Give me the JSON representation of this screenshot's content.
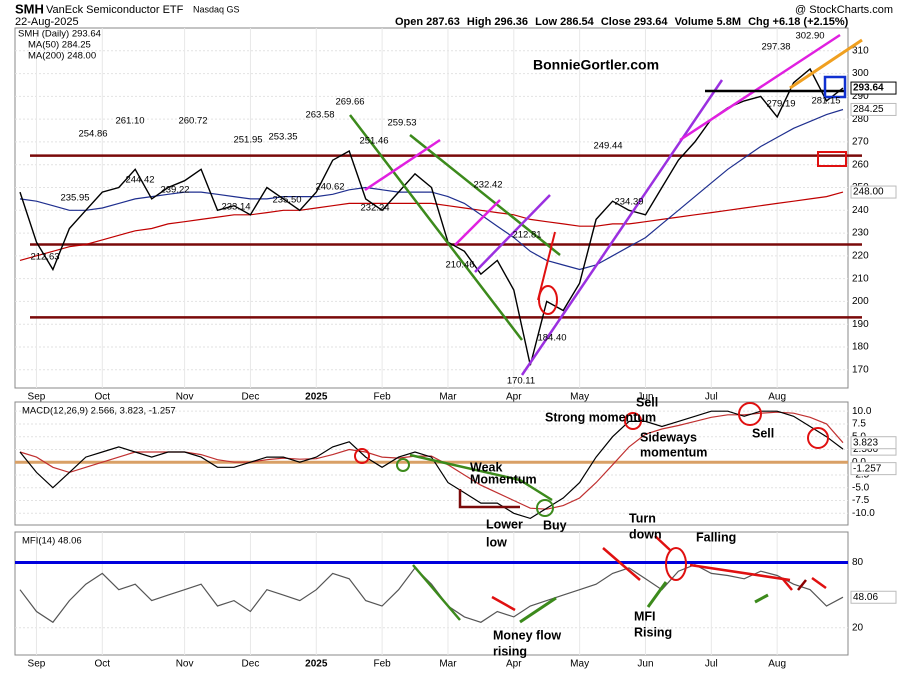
{
  "header": {
    "symbol": "SMH",
    "name": "VanEck Semiconductor ETF",
    "exchange": "Nasdaq GS",
    "date": "22-Aug-2025",
    "source": "@ StockCharts.com",
    "quote": [
      "Open 287.63",
      "High 296.36",
      "Low 286.54",
      "Close 293.64",
      "Volume 5.8M",
      "Chg +6.18 (+2.15%)"
    ]
  },
  "chart_data": [
    {
      "type": "line",
      "categories": [
        null,
        "Sep",
        null,
        null,
        null,
        "Oct",
        null,
        null,
        null,
        null,
        "Nov",
        null,
        null,
        null,
        "Dec",
        null,
        null,
        null,
        "2025",
        null,
        null,
        null,
        "Feb",
        null,
        null,
        null,
        "Mar",
        null,
        null,
        null,
        "Apr",
        null,
        null,
        null,
        "May",
        null,
        null,
        null,
        "Jun",
        null,
        null,
        null,
        "Jul",
        null,
        null,
        null,
        "Aug",
        null,
        null,
        null,
        null
      ],
      "series": [
        {
          "name": "SMH (Daily) 293.64",
          "color": "#000000",
          "values": [
            248,
            226,
            214,
            232,
            240,
            248,
            250,
            258,
            245,
            250,
            253,
            258,
            240,
            242,
            238,
            250,
            245,
            240,
            248,
            262,
            266,
            245,
            240,
            248,
            256,
            250,
            226,
            222,
            212,
            218,
            205,
            172,
            200,
            196,
            208,
            236,
            244,
            240,
            238,
            250,
            262,
            270,
            280,
            285,
            288,
            290,
            281,
            296,
            302,
            288,
            293.64
          ]
        },
        {
          "name": "MA(50) 284.25",
          "color": "#1f2f8f",
          "values": [
            245,
            244,
            242,
            240,
            240,
            241,
            243,
            245,
            246,
            247,
            248,
            248,
            247,
            246,
            245,
            245,
            246,
            246,
            246,
            247,
            249,
            250,
            249,
            248,
            248,
            248,
            246,
            243,
            238,
            233,
            228,
            222,
            218,
            216,
            214,
            216,
            220,
            224,
            228,
            234,
            240,
            246,
            252,
            258,
            263,
            268,
            272,
            276,
            279,
            282,
            284.25
          ]
        },
        {
          "name": "MA(200) 248.00",
          "color": "#c00000",
          "values": [
            218,
            220,
            222,
            224,
            225,
            227,
            229,
            231,
            232,
            234,
            235,
            236,
            237,
            238,
            238,
            239,
            240,
            240,
            241,
            242,
            243,
            243,
            243,
            243,
            243,
            243,
            242,
            241,
            240,
            239,
            238,
            236,
            235,
            234,
            233,
            233,
            234,
            234,
            235,
            236,
            237,
            238,
            239,
            240,
            241,
            242,
            243,
            244,
            245,
            246,
            248
          ]
        }
      ],
      "last_values": [
        293.64,
        284.25,
        {
          "value": 248,
          "label": "248.00"
        }
      ],
      "ylim": [
        162,
        320
      ],
      "yticks": [
        170,
        180,
        190,
        200,
        210,
        220,
        230,
        240,
        250,
        260,
        270,
        280,
        290,
        300,
        310
      ],
      "grid": true,
      "levels": [
        264,
        225,
        193
      ],
      "level_color": "#7a0a0a",
      "price_labels": [
        "254.86",
        "261.10",
        "260.72",
        "244.42",
        "239.22",
        "235.95",
        "251.95",
        "253.35",
        "233.14",
        "235.50",
        "263.58",
        "269.66",
        "251.46",
        "240.62",
        "232.24",
        "259.53",
        "212.63",
        "232.42",
        "210.46",
        "212.81",
        "184.40",
        "170.11",
        "249.44",
        "234.39",
        "297.38",
        "302.90",
        "279.19",
        "281.15"
      ],
      "annotations": [
        {
          "lines": [
            "BonnieGortler.com"
          ],
          "color": "#1a8a1a"
        }
      ]
    },
    {
      "type": "line",
      "title": "MACD(12,26,9) 2.566, 3.823, -1.257",
      "series": [
        {
          "color": "#000000",
          "values": [
            2,
            -2,
            -5,
            -2,
            1,
            2,
            3,
            2,
            1,
            2,
            2,
            1,
            -1,
            -1,
            0,
            1,
            1,
            0,
            1,
            3,
            4,
            1,
            -1,
            1,
            2,
            1,
            -4,
            -6,
            -8,
            -8,
            -10,
            -11,
            -9,
            -7,
            -4,
            1,
            5,
            8,
            8,
            7,
            8,
            9,
            10,
            10,
            9,
            10,
            10,
            9,
            7,
            5,
            2.566
          ]
        },
        {
          "color": "#c03030",
          "values": [
            2,
            1,
            -1,
            -2,
            -1,
            0,
            1,
            2,
            2,
            2,
            2,
            1.5,
            0.5,
            0,
            0,
            0.5,
            0.8,
            0.6,
            0.7,
            1.5,
            2.5,
            2,
            1,
            0.8,
            1.2,
            1.2,
            -0.5,
            -2.5,
            -4.5,
            -6,
            -7.5,
            -9,
            -9.2,
            -8.5,
            -7,
            -4,
            -0.5,
            3,
            5.5,
            6.5,
            7.2,
            8,
            8.8,
            9.3,
            9.3,
            9.6,
            9.8,
            9.6,
            8.8,
            7.5,
            3.823
          ]
        }
      ],
      "last_values": [
        2.566,
        3.823,
        -1.257
      ],
      "ylim": [
        -12.3,
        11.8
      ],
      "yticks": [
        {
          "value": 10,
          "label": "10.0"
        },
        7.5,
        {
          "value": 5,
          "label": "5.0"
        },
        2.5,
        {
          "value": 0,
          "label": "0.0"
        },
        -2.5,
        {
          "value": -5,
          "label": "-5.0"
        },
        -7.5,
        {
          "value": -10,
          "label": "-10.0"
        }
      ],
      "grid": true,
      "annotations": [
        {
          "lines": [
            "Strong momentum"
          ],
          "color": "#000000"
        },
        {
          "lines": [
            "Sell"
          ],
          "color": "#d01010"
        },
        {
          "lines": [
            "Sideways",
            "momentum"
          ],
          "color": "#000000"
        },
        {
          "lines": [
            "Sell"
          ],
          "color": "#d01010"
        },
        {
          "lines": [
            "Weak",
            "Momentum"
          ],
          "color": "#333333"
        },
        {
          "lines": [
            "Lower",
            "low"
          ],
          "color": "#8b0000"
        },
        {
          "lines": [
            "Buy"
          ],
          "color": "#1a8a1a"
        }
      ]
    },
    {
      "type": "line",
      "title": "MFI(14) 48.06",
      "categories": [
        null,
        "Sep",
        null,
        null,
        null,
        "Oct",
        null,
        null,
        null,
        null,
        "Nov",
        null,
        null,
        null,
        "Dec",
        null,
        null,
        null,
        "2025",
        null,
        null,
        null,
        "Feb",
        null,
        null,
        null,
        "Mar",
        null,
        null,
        null,
        "Apr",
        null,
        null,
        null,
        "May",
        null,
        null,
        null,
        "Jun",
        null,
        null,
        null,
        "Jul",
        null,
        null,
        null,
        "Aug",
        null,
        null,
        null,
        null
      ],
      "series": [
        {
          "color": "#555555",
          "values": [
            55,
            35,
            25,
            45,
            60,
            70,
            55,
            60,
            45,
            50,
            55,
            60,
            40,
            45,
            35,
            55,
            50,
            45,
            55,
            70,
            65,
            45,
            40,
            55,
            75,
            60,
            40,
            30,
            25,
            35,
            30,
            40,
            45,
            50,
            55,
            60,
            70,
            75,
            65,
            55,
            72,
            78,
            70,
            68,
            65,
            72,
            68,
            60,
            55,
            40,
            48.06
          ]
        }
      ],
      "last_values": [
        48.06
      ],
      "ylim": [
        -5,
        108
      ],
      "yticks": [
        20,
        80
      ],
      "grid": true,
      "reference": {
        "value": 80,
        "color": "#0000dd"
      },
      "annotations": [
        {
          "lines": [
            "Turn",
            "down"
          ],
          "color": "#d01010"
        },
        {
          "lines": [
            "Falling"
          ],
          "color": "#d01010"
        },
        {
          "lines": [
            "Money flow",
            "rising"
          ],
          "color": "#1a8a1a"
        },
        {
          "lines": [
            "MFI",
            "Rising"
          ],
          "color": "#1a8a1a"
        }
      ]
    }
  ]
}
